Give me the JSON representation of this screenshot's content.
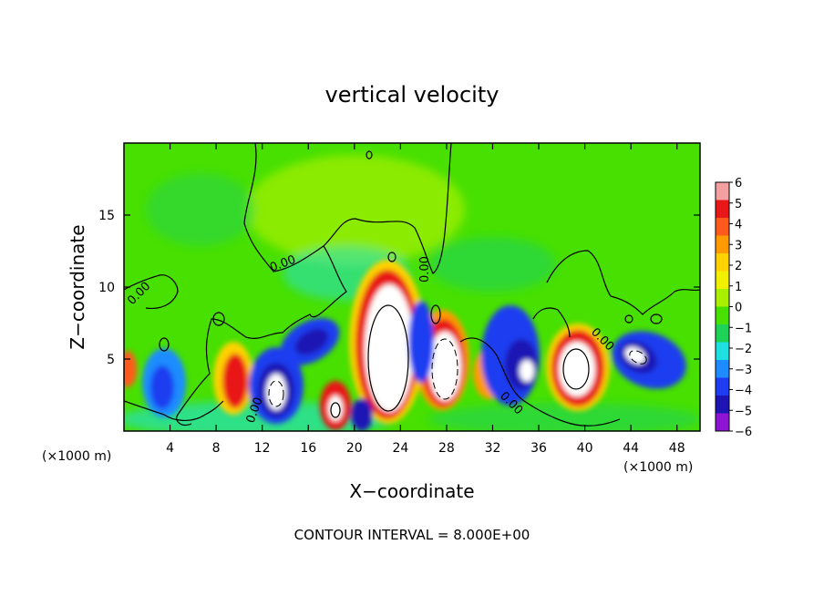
{
  "chart_data": {
    "type": "heatmap",
    "title": "vertical velocity",
    "xlabel": "X−coordinate",
    "ylabel": "Z−coordinate",
    "x_unit": "(×1000 m)",
    "y_unit": "(×1000 m)",
    "xlim": [
      0,
      50
    ],
    "ylim": [
      0,
      20
    ],
    "x_ticks": [
      "4",
      "8",
      "12",
      "16",
      "20",
      "24",
      "28",
      "32",
      "36",
      "40",
      "44",
      "48"
    ],
    "y_ticks": [
      "5",
      "10",
      "15"
    ],
    "colorbar": {
      "range": [
        -6,
        6
      ],
      "tick_labels": [
        "6",
        "5",
        "4",
        "3",
        "2",
        "1",
        "0",
        "−1",
        "−2",
        "−3",
        "−4",
        "−5",
        "−6"
      ],
      "colors": [
        "#f2a0a0",
        "#e81818",
        "#ff5a1e",
        "#ff9a00",
        "#ffd200",
        "#f0f000",
        "#a8f000",
        "#48e000",
        "#1ed258",
        "#1ee0e0",
        "#1e8cff",
        "#1e3cf0",
        "#1e14b4",
        "#8c14d2"
      ]
    },
    "contour_labels": [
      "0.00",
      "0.00",
      "0.00",
      "0.00",
      "0.00",
      "0.00"
    ],
    "grid": false,
    "footnote": "CONTOUR INTERVAL = 8.000E+00",
    "features": [
      {
        "x": 22.8,
        "z": 5.5,
        "sign": "positive",
        "peak": ">6"
      },
      {
        "x": 27.0,
        "z": 4.5,
        "sign": "positive",
        "peak": ">6"
      },
      {
        "x": 39.0,
        "z": 4.5,
        "sign": "positive",
        "peak": ">6"
      },
      {
        "x": 9.5,
        "z": 3.0,
        "sign": "positive",
        "peak": "~5"
      },
      {
        "x": 18.3,
        "z": 2.0,
        "sign": "positive",
        "peak": ">6"
      },
      {
        "x": 13.5,
        "z": 3.0,
        "sign": "negative",
        "peak": "<-6"
      },
      {
        "x": 35.0,
        "z": 4.5,
        "sign": "negative",
        "peak": "<-6"
      },
      {
        "x": 44.5,
        "z": 5.0,
        "sign": "negative",
        "peak": "<-6"
      },
      {
        "x": 4.0,
        "z": 3.5,
        "sign": "negative",
        "peak": "-4"
      },
      {
        "x": 16.5,
        "z": 5.5,
        "sign": "negative",
        "peak": "-4"
      },
      {
        "x": 20.0,
        "z": 1.0,
        "sign": "negative",
        "peak": "-5"
      }
    ]
  }
}
